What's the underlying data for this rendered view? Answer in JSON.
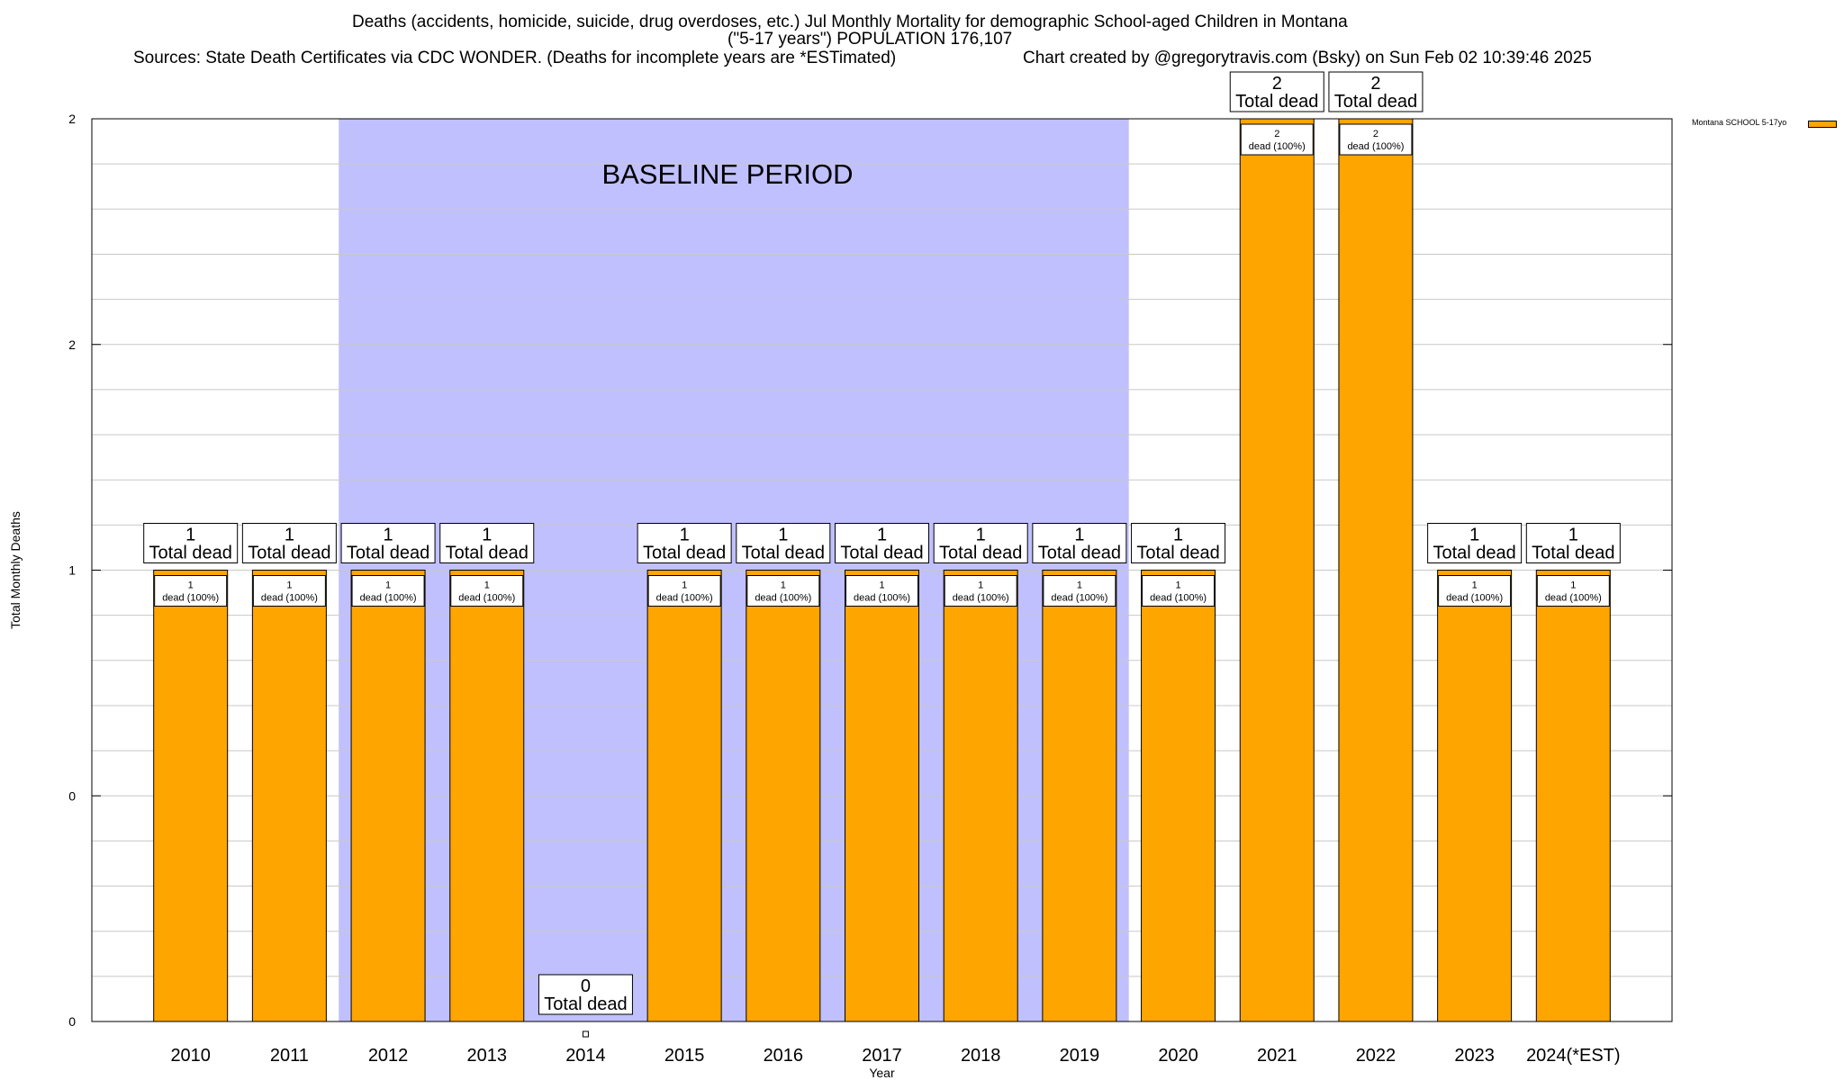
{
  "header": {
    "title_line1": "Deaths (accidents, homicide, suicide, drug overdoses, etc.) Jul Monthly Mortality for demographic School-aged Children in Montana",
    "title_line2": "(\"5-17 years\") POPULATION 176,107",
    "sources": "Sources: State Death Certificates via CDC WONDER. (Deaths for incomplete years are *ESTimated)",
    "credit": "Chart created by @gregorytravis.com (Bsky) on Sun Feb 02 10:39:46 2025"
  },
  "legend": {
    "label": "Montana SCHOOL 5-17yo"
  },
  "chart_data": {
    "type": "bar",
    "xlabel": "Year",
    "ylabel": "Total Monthly Deaths",
    "categories": [
      "2010",
      "2011",
      "2012",
      "2013",
      "2014",
      "2015",
      "2016",
      "2017",
      "2018",
      "2019",
      "2020",
      "2021",
      "2022",
      "2023",
      "2024(*EST)"
    ],
    "series": [
      {
        "name": "Montana SCHOOL 5-17yo",
        "values": [
          1,
          1,
          1,
          1,
          0,
          1,
          1,
          1,
          1,
          1,
          1,
          2,
          2,
          1,
          1
        ]
      }
    ],
    "ylim": [
      0,
      2
    ],
    "y_tick_labels": [
      "0",
      "0",
      "1",
      "2",
      "2"
    ],
    "grid": true,
    "legend_position": "top-right",
    "colors": {
      "bar": "#ffa500",
      "baseline": "#c0c0ff"
    },
    "total_label_text": "Total dead",
    "segment_label_text": "dead (100%)",
    "shaded_region": {
      "label": "BASELINE PERIOD",
      "from": "2012",
      "to": "2019"
    }
  }
}
